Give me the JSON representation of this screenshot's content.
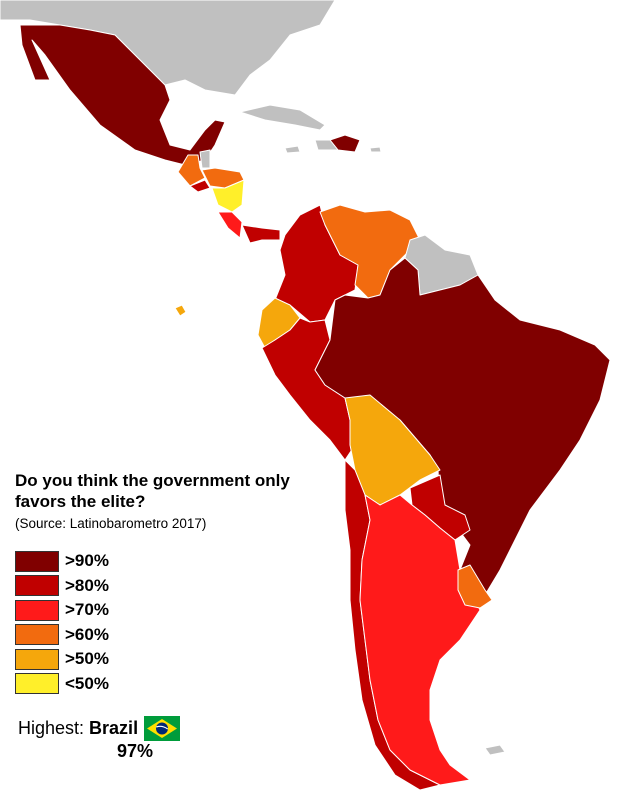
{
  "title": "Do you think the government only favors the elite?",
  "source": "(Source: Latinobarometro 2017)",
  "colors": {
    "gt90": "#800000",
    "gt80": "#c00000",
    "gt70": "#ff1a1a",
    "gt60": "#f26b0f",
    "gt50": "#f5a70c",
    "lt50": "#ffef2a",
    "nodata": "#c0c0c0"
  },
  "legend": [
    {
      "label": ">90%",
      "color": "#800000"
    },
    {
      "label": ">80%",
      "color": "#c00000"
    },
    {
      "label": ">70%",
      "color": "#ff1a1a"
    },
    {
      "label": ">60%",
      "color": "#f26b0f"
    },
    {
      "label": ">50%",
      "color": "#f5a70c"
    },
    {
      "label": "<50%",
      "color": "#ffef2a"
    }
  ],
  "highest": {
    "label": "Highest:",
    "country": "Brazil",
    "value": "97%",
    "flag_icon": "brazil-flag-icon"
  }
}
